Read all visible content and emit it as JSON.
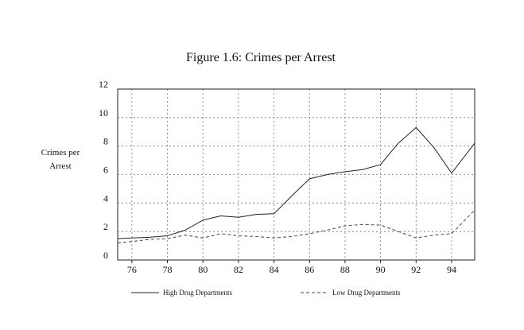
{
  "chart_data": {
    "type": "line",
    "title": "Figure 1.6: Crimes per Arrest",
    "y_label": "Crimes per Arrest",
    "x": [
      75.2,
      76,
      77,
      78,
      79,
      80,
      81,
      82,
      83,
      84,
      85,
      86,
      87,
      88,
      89,
      90,
      91,
      92,
      93,
      94,
      95.3
    ],
    "series": [
      {
        "name": "High Drug Departments",
        "color": "#222222",
        "dash": false,
        "values": [
          1.5,
          1.55,
          1.6,
          1.7,
          2.1,
          2.8,
          3.1,
          3.0,
          3.2,
          3.25,
          4.5,
          5.7,
          6.0,
          6.2,
          6.35,
          6.7,
          8.2,
          9.3,
          7.9,
          6.1,
          8.2
        ]
      },
      {
        "name": "Low Drug Departments",
        "color": "#444444",
        "dash": true,
        "values": [
          1.2,
          1.3,
          1.45,
          1.5,
          1.75,
          1.55,
          1.85,
          1.7,
          1.65,
          1.55,
          1.65,
          1.85,
          2.1,
          2.4,
          2.5,
          2.45,
          2.0,
          1.55,
          1.75,
          1.85,
          3.5
        ]
      }
    ],
    "xlim": [
      75.2,
      95.3
    ],
    "xticks": [
      76,
      78,
      80,
      82,
      84,
      86,
      88,
      90,
      92,
      94
    ],
    "ylim": [
      0,
      12
    ],
    "yticks": [
      0,
      2,
      4,
      6,
      8,
      10,
      12
    ],
    "grid": true
  }
}
